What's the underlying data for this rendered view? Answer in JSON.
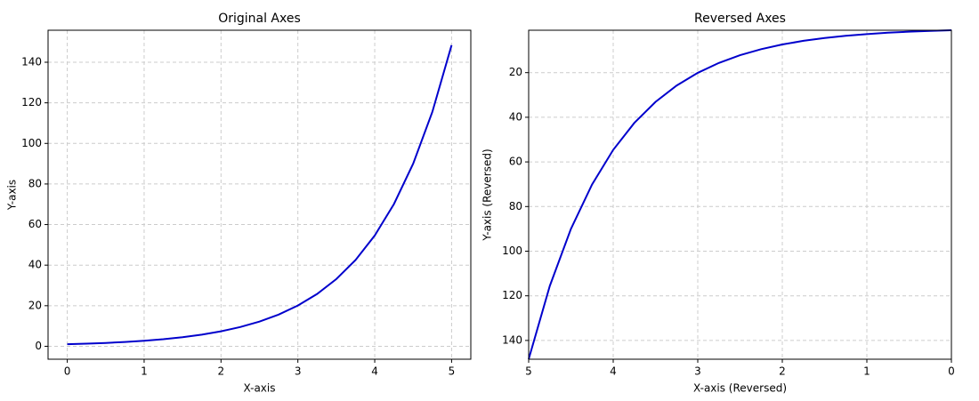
{
  "chart_data": [
    {
      "type": "line",
      "title": "Original Axes",
      "x_label": "X-axis",
      "y_label": "Y-axis",
      "x": [
        0,
        0.25,
        0.5,
        0.75,
        1,
        1.25,
        1.5,
        1.75,
        2,
        2.25,
        2.5,
        2.75,
        3,
        3.25,
        3.5,
        3.75,
        4,
        4.25,
        4.5,
        4.75,
        5
      ],
      "values": [
        1,
        1.28,
        1.65,
        2.12,
        2.72,
        3.49,
        4.48,
        5.75,
        7.39,
        9.49,
        12.18,
        15.64,
        20.09,
        25.79,
        33.12,
        42.52,
        54.6,
        70.11,
        90.02,
        115.58,
        148.41
      ],
      "color": "#0000cc",
      "xlim": [
        -0.25,
        5.25
      ],
      "ylim": [
        -6.37,
        155.78
      ],
      "xticks": [
        0,
        1,
        2,
        3,
        4,
        5
      ],
      "yticks": [
        0,
        20,
        40,
        60,
        80,
        100,
        120,
        140
      ],
      "grid": true
    },
    {
      "type": "line",
      "title": "Reversed Axes",
      "x_label": "X-axis (Reversed)",
      "y_label": "Y-axis (Reversed)",
      "x": [
        0,
        0.25,
        0.5,
        0.75,
        1,
        1.25,
        1.5,
        1.75,
        2,
        2.25,
        2.5,
        2.75,
        3,
        3.25,
        3.5,
        3.75,
        4,
        4.25,
        4.5,
        4.75,
        5
      ],
      "values": [
        1,
        1.28,
        1.65,
        2.12,
        2.72,
        3.49,
        4.48,
        5.75,
        7.39,
        9.49,
        12.18,
        15.64,
        20.09,
        25.79,
        33.12,
        42.52,
        54.6,
        70.11,
        90.02,
        115.58,
        148.41
      ],
      "color": "#0000cc",
      "xlim": [
        5,
        0
      ],
      "ylim": [
        148.41,
        1
      ],
      "xticks": [
        5,
        4,
        3,
        2,
        1,
        0
      ],
      "yticks": [
        20,
        40,
        60,
        80,
        100,
        120,
        140
      ],
      "grid": true
    }
  ]
}
